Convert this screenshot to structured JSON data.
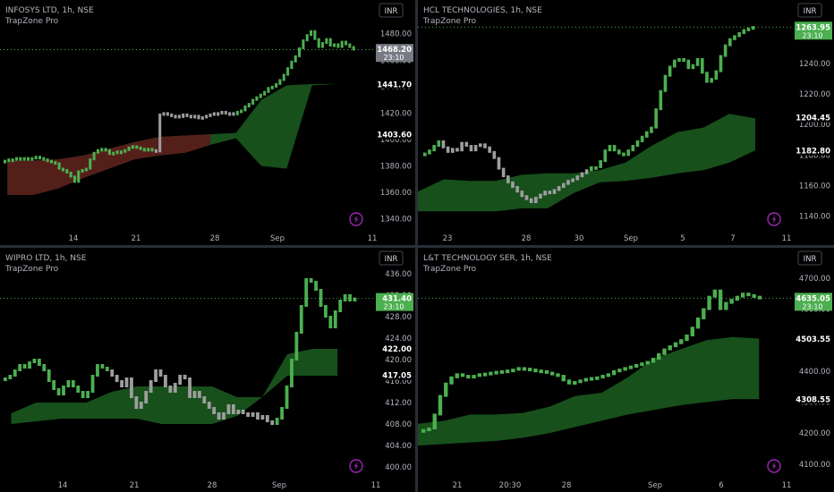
{
  "colors": {
    "background": "#000000",
    "up": "#4caf50",
    "down": "#9e9e9e",
    "cloud_up": "#1b5e20",
    "cloud_down": "#5c1a1a",
    "axis_text": "#b2b5be",
    "price_tag_up": "#4caf50",
    "price_tag_neutral": "#787b86",
    "accent": "#9c27b0"
  },
  "panels": [
    {
      "title": "INFOSYS LTD, 1h, NSE",
      "subtitle": "TrapZone Pro",
      "currency": "INR",
      "x_ticks": [
        "14",
        "21",
        "28",
        "Sep",
        "11"
      ],
      "y_ticks": [
        "1480.00",
        "1460.00",
        "1440.00",
        "1420.00",
        "1400.00",
        "1380.00",
        "1360.00",
        "1340.00"
      ],
      "price_tags": [
        {
          "value": "1468.20",
          "timer": "23:10",
          "style": "neutral"
        },
        {
          "value": "1441.70",
          "style": "plain"
        },
        {
          "value": "1403.60",
          "style": "plain"
        }
      ]
    },
    {
      "title": "HCL TECHNOLOGIES, 1h, NSE",
      "subtitle": "TrapZone Pro",
      "currency": "INR",
      "x_ticks": [
        "23",
        "28",
        "30",
        "Sep",
        "5",
        "7",
        "11"
      ],
      "y_ticks": [
        "1260.00",
        "1240.00",
        "1220.00",
        "1200.00",
        "1180.00",
        "1160.00",
        "1140.00"
      ],
      "price_tags": [
        {
          "value": "1263.95",
          "timer": "23:10",
          "style": "up"
        },
        {
          "value": "1204.45",
          "style": "plain"
        },
        {
          "value": "1182.80",
          "style": "plain"
        }
      ]
    },
    {
      "title": "WIPRO LTD, 1h, NSE",
      "subtitle": "TrapZone Pro",
      "currency": "INR",
      "x_ticks": [
        "14",
        "21",
        "28",
        "Sep",
        "11"
      ],
      "y_ticks": [
        "436.00",
        "432.00",
        "428.00",
        "424.00",
        "420.00",
        "416.00",
        "412.00",
        "408.00",
        "404.00",
        "400.00"
      ],
      "price_tags": [
        {
          "value": "431.40",
          "timer": "23:10",
          "style": "up"
        },
        {
          "value": "422.00",
          "style": "plain"
        },
        {
          "value": "417.05",
          "style": "plain"
        }
      ]
    },
    {
      "title": "L&T TECHNOLOGY SER, 1h, NSE",
      "subtitle": "TrapZone Pro",
      "currency": "INR",
      "x_ticks": [
        "21",
        "20:30",
        "28",
        "Sep",
        "6",
        "11"
      ],
      "y_ticks": [
        "4700.00",
        "4600.00",
        "4500.00",
        "4400.00",
        "4300.00",
        "4200.00",
        "4100.00"
      ],
      "price_tags": [
        {
          "value": "4635.05",
          "timer": "23:10",
          "style": "up"
        },
        {
          "value": "4503.55",
          "style": "plain"
        },
        {
          "value": "4308.55",
          "style": "plain"
        }
      ]
    }
  ],
  "chart_data": [
    {
      "type": "candlestick",
      "title": "INFOSYS LTD, 1h, NSE",
      "ylim": [
        1333,
        1492
      ],
      "close_series": [
        1384,
        1385,
        1385,
        1386,
        1385,
        1386,
        1385,
        1386,
        1387,
        1386,
        1385,
        1384,
        1383,
        1382,
        1378,
        1377,
        1375,
        1372,
        1368,
        1376,
        1377,
        1378,
        1385,
        1390,
        1392,
        1393,
        1392,
        1389,
        1390,
        1391,
        1391,
        1392,
        1394,
        1395,
        1394,
        1393,
        1392,
        1393,
        1392,
        1391,
        1419,
        1420,
        1419,
        1418,
        1418,
        1417,
        1419,
        1418,
        1417,
        1418,
        1416,
        1417,
        1418,
        1419,
        1420,
        1420,
        1421,
        1420,
        1420,
        1419,
        1421,
        1422,
        1425,
        1427,
        1430,
        1432,
        1434,
        1436,
        1439,
        1440,
        1442,
        1445,
        1449,
        1454,
        1459,
        1463,
        1469,
        1475,
        1479,
        1482,
        1476,
        1470,
        1473,
        1476,
        1471,
        1472,
        1470,
        1474,
        1472,
        1470,
        1468
      ],
      "cloud": {
        "x_start": 0.02,
        "x_end": 0.95,
        "top": [
          1384,
          1384,
          1385,
          1388,
          1393,
          1398,
          1402,
          1403,
          1404,
          1405,
          1430,
          1441,
          1442,
          1442
        ],
        "bottom": [
          1358,
          1358,
          1363,
          1371,
          1378,
          1385,
          1388,
          1390,
          1396,
          1401,
          1380,
          1378,
          1441,
          1442
        ]
      }
    },
    {
      "type": "candlestick",
      "title": "HCL TECHNOLOGIES, 1h, NSE",
      "ylim": [
        1132,
        1270
      ],
      "close_series": [
        1181,
        1183,
        1186,
        1189,
        1185,
        1182,
        1184,
        1183,
        1188,
        1186,
        1183,
        1186,
        1187,
        1185,
        1182,
        1178,
        1171,
        1166,
        1162,
        1159,
        1156,
        1153,
        1151,
        1149,
        1152,
        1154,
        1156,
        1155,
        1157,
        1159,
        1161,
        1163,
        1164,
        1166,
        1168,
        1170,
        1172,
        1172,
        1176,
        1183,
        1186,
        1183,
        1181,
        1180,
        1183,
        1186,
        1189,
        1192,
        1195,
        1198,
        1210,
        1222,
        1232,
        1238,
        1242,
        1243,
        1242,
        1237,
        1239,
        1243,
        1234,
        1228,
        1230,
        1235,
        1245,
        1252,
        1256,
        1258,
        1260,
        1262,
        1263,
        1264
      ],
      "cloud": {
        "x_start": 0.0,
        "x_end": 0.95,
        "top": [
          1156,
          1164,
          1163,
          1163,
          1167,
          1168,
          1168,
          1170,
          1175,
          1186,
          1195,
          1198,
          1207,
          1204
        ],
        "bottom": [
          1143,
          1143,
          1143,
          1143,
          1145,
          1145,
          1155,
          1162,
          1163,
          1165,
          1168,
          1170,
          1175,
          1183
        ]
      }
    },
    {
      "type": "candlestick",
      "title": "WIPRO LTD, 1h, NSE",
      "ylim": [
        398.5,
        437.5
      ],
      "close_series": [
        416.5,
        417,
        418,
        419,
        418.5,
        419.5,
        420,
        419,
        418,
        416,
        414.5,
        413.5,
        415,
        416,
        415,
        414,
        413,
        414,
        417,
        419,
        418.5,
        418,
        417,
        416,
        415,
        416.5,
        413,
        411,
        412,
        414,
        416,
        418,
        417,
        415,
        414,
        415.5,
        417,
        416.5,
        413,
        414,
        413,
        412,
        411,
        410,
        409,
        410,
        411.5,
        410,
        410.5,
        410,
        409.5,
        410,
        409,
        409.5,
        408.5,
        408,
        409,
        411,
        415,
        420,
        425,
        430,
        435,
        434.5,
        433,
        430,
        428,
        426,
        429,
        431,
        432,
        431,
        431.4
      ],
      "cloud": {
        "x_start": 0.03,
        "x_end": 0.95,
        "top": [
          410,
          412,
          412,
          412,
          414,
          415,
          415,
          415,
          415,
          413,
          413,
          421,
          422,
          422
        ],
        "bottom": [
          408,
          408.5,
          409,
          409,
          409,
          409,
          408,
          408,
          408,
          409.5,
          413,
          417,
          417,
          417
        ]
      }
    },
    {
      "type": "candlestick",
      "title": "L&T TECHNOLOGY SER, 1h, NSE",
      "ylim": [
        4065,
        4740
      ],
      "close_series": [
        4210,
        4215,
        4260,
        4320,
        4360,
        4380,
        4390,
        4385,
        4380,
        4385,
        4390,
        4392,
        4395,
        4398,
        4400,
        4402,
        4405,
        4410,
        4408,
        4405,
        4402,
        4400,
        4395,
        4390,
        4385,
        4370,
        4360,
        4365,
        4370,
        4375,
        4378,
        4380,
        4385,
        4390,
        4400,
        4405,
        4410,
        4415,
        4420,
        4425,
        4430,
        4440,
        4455,
        4470,
        4480,
        4490,
        4500,
        4515,
        4540,
        4570,
        4600,
        4640,
        4660,
        4600,
        4620,
        4630,
        4640,
        4650,
        4645,
        4640,
        4635
      ],
      "cloud": {
        "x_start": 0.0,
        "x_end": 0.96,
        "top": [
          4230,
          4240,
          4260,
          4260,
          4265,
          4285,
          4320,
          4330,
          4380,
          4440,
          4470,
          4500,
          4510,
          4505
        ],
        "bottom": [
          4160,
          4165,
          4170,
          4175,
          4185,
          4200,
          4220,
          4240,
          4260,
          4275,
          4290,
          4300,
          4310,
          4310
        ]
      }
    }
  ]
}
